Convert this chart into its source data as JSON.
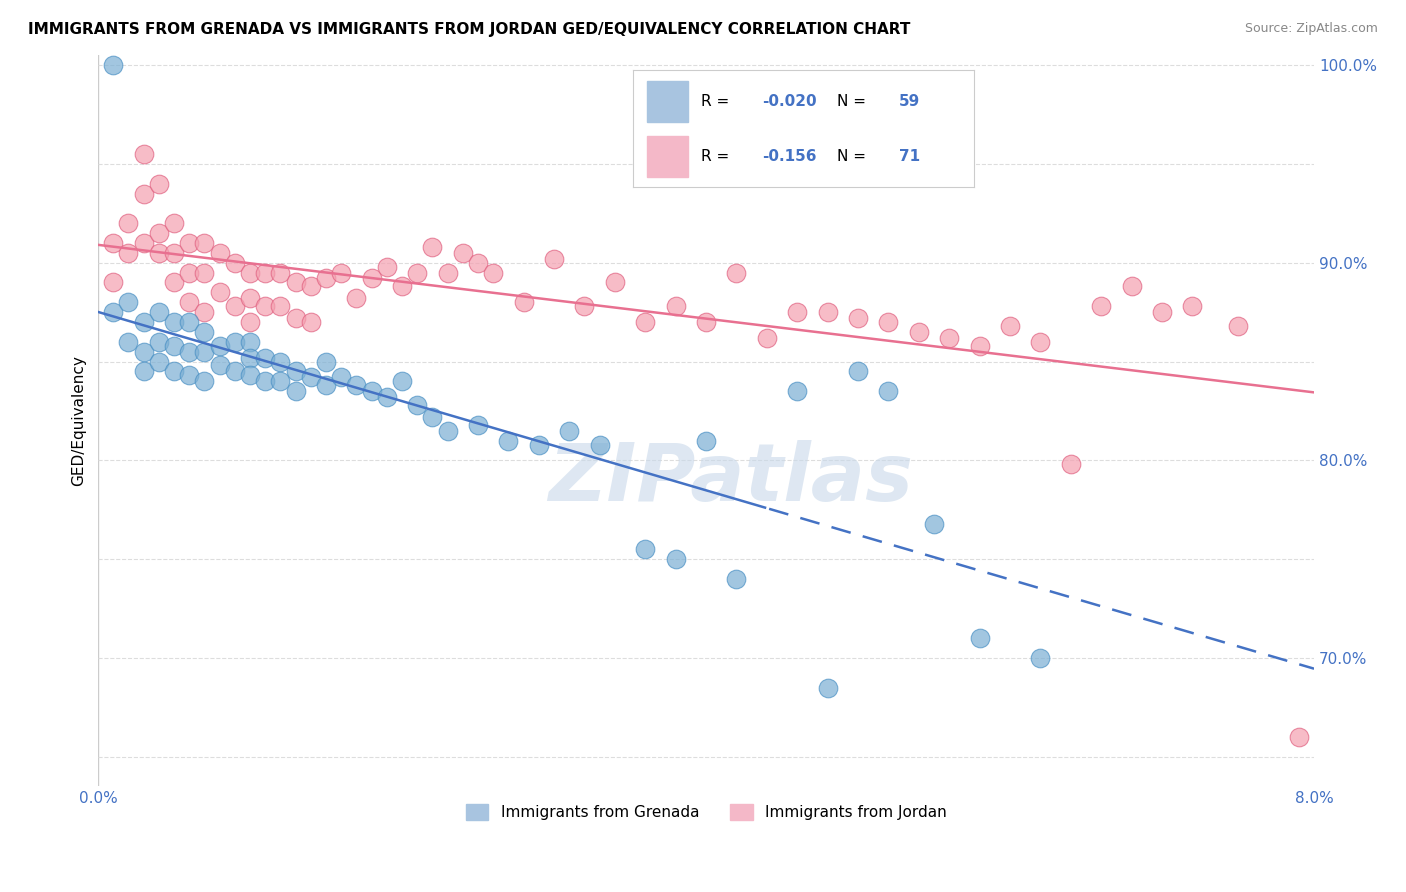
{
  "title": "IMMIGRANTS FROM GRENADA VS IMMIGRANTS FROM JORDAN GED/EQUIVALENCY CORRELATION CHART",
  "source": "Source: ZipAtlas.com",
  "ylabel": "GED/Equivalency",
  "xlim": [
    0.0,
    0.08
  ],
  "ylim": [
    0.635,
    1.005
  ],
  "series1_color": "#7bafd4",
  "series1_edge": "#4a90c4",
  "series2_color": "#f4a0b0",
  "series2_edge": "#e06080",
  "line1_color": "#4472c4",
  "line2_color": "#e87090",
  "series1_R": -0.02,
  "series1_N": 59,
  "series2_R": -0.156,
  "series2_N": 71,
  "watermark": "ZIPatlas",
  "background_color": "#ffffff",
  "grid_color": "#dddddd",
  "legend_box_color": "#a8c4e0",
  "legend_box2_color": "#f4b8c8"
}
